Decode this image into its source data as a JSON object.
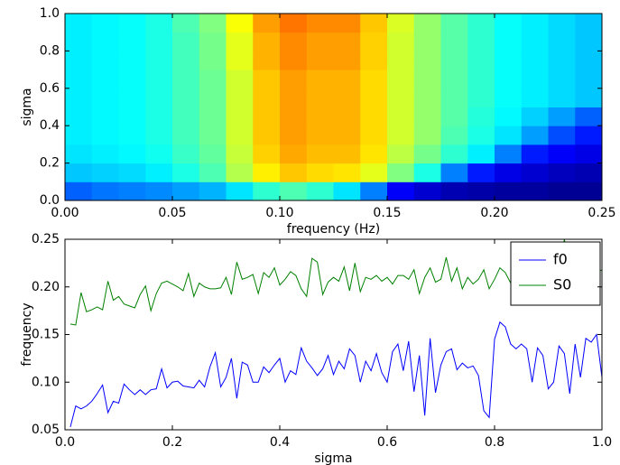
{
  "chart_data": [
    {
      "type": "heatmap",
      "xlabel": "frequency (Hz)",
      "ylabel": "sigma",
      "colormap": "jet",
      "xlim": [
        0,
        0.25
      ],
      "ylim": [
        0,
        1
      ],
      "xticks": [
        {
          "value": 0,
          "label": "0.00"
        },
        0.05,
        {
          "value": 0.1,
          "label": "0.10"
        },
        0.15,
        {
          "value": 0.2,
          "label": "0.20"
        },
        0.25
      ],
      "yticks": [
        {
          "value": 0,
          "label": "0.0"
        },
        0.2,
        0.4,
        0.6,
        0.8,
        {
          "value": 1,
          "label": "1.0"
        }
      ],
      "z": [
        [
          0.22,
          0.24,
          0.25,
          0.26,
          0.28,
          0.3,
          0.35,
          0.42,
          0.45,
          0.42,
          0.35,
          0.25,
          0.12,
          0.08,
          0.05,
          0.04,
          0.03,
          0.03,
          0.02,
          0.02
        ],
        [
          0.32,
          0.33,
          0.34,
          0.36,
          0.4,
          0.45,
          0.55,
          0.64,
          0.68,
          0.66,
          0.65,
          0.6,
          0.5,
          0.4,
          0.25,
          0.15,
          0.1,
          0.08,
          0.06,
          0.05
        ],
        [
          0.35,
          0.36,
          0.37,
          0.39,
          0.43,
          0.47,
          0.57,
          0.67,
          0.71,
          0.69,
          0.69,
          0.65,
          0.56,
          0.49,
          0.42,
          0.36,
          0.25,
          0.15,
          0.12,
          0.1
        ],
        [
          0.36,
          0.37,
          0.38,
          0.4,
          0.44,
          0.48,
          0.58,
          0.68,
          0.72,
          0.7,
          0.7,
          0.66,
          0.58,
          0.52,
          0.45,
          0.4,
          0.35,
          0.28,
          0.2,
          0.15
        ],
        [
          0.36,
          0.37,
          0.38,
          0.4,
          0.44,
          0.48,
          0.58,
          0.68,
          0.72,
          0.7,
          0.7,
          0.66,
          0.58,
          0.52,
          0.46,
          0.41,
          0.37,
          0.33,
          0.28,
          0.22
        ],
        [
          0.36,
          0.37,
          0.38,
          0.4,
          0.44,
          0.48,
          0.58,
          0.68,
          0.72,
          0.7,
          0.7,
          0.66,
          0.58,
          0.52,
          0.46,
          0.42,
          0.38,
          0.36,
          0.34,
          0.32
        ],
        [
          0.36,
          0.37,
          0.38,
          0.4,
          0.44,
          0.48,
          0.58,
          0.68,
          0.72,
          0.7,
          0.7,
          0.66,
          0.58,
          0.52,
          0.46,
          0.42,
          0.38,
          0.36,
          0.34,
          0.32
        ],
        [
          0.36,
          0.37,
          0.38,
          0.4,
          0.44,
          0.49,
          0.6,
          0.7,
          0.74,
          0.72,
          0.72,
          0.67,
          0.58,
          0.52,
          0.46,
          0.42,
          0.38,
          0.36,
          0.34,
          0.32
        ],
        [
          0.36,
          0.37,
          0.38,
          0.4,
          0.44,
          0.49,
          0.6,
          0.7,
          0.74,
          0.72,
          0.72,
          0.67,
          0.58,
          0.52,
          0.46,
          0.42,
          0.38,
          0.36,
          0.34,
          0.32
        ],
        [
          0.36,
          0.37,
          0.38,
          0.4,
          0.45,
          0.5,
          0.62,
          0.72,
          0.76,
          0.74,
          0.74,
          0.68,
          0.59,
          0.52,
          0.46,
          0.42,
          0.38,
          0.36,
          0.34,
          0.32
        ]
      ]
    },
    {
      "type": "line",
      "xlabel": "sigma",
      "ylabel": "frequency",
      "legend": "upper right",
      "xlim": [
        0,
        1
      ],
      "ylim": [
        0.05,
        0.25
      ],
      "xticks": [
        {
          "value": 0,
          "label": "0.0"
        },
        0.2,
        0.4,
        0.6,
        0.8,
        {
          "value": 1,
          "label": "1.0"
        }
      ],
      "yticks": [
        0.05,
        {
          "value": 0.1,
          "label": "0.10"
        },
        0.15,
        {
          "value": 0.2,
          "label": "0.20"
        },
        0.25
      ],
      "x": [
        0.01,
        0.02,
        0.03,
        0.04,
        0.05,
        0.06,
        0.07,
        0.08,
        0.09,
        0.1,
        0.11,
        0.12,
        0.13,
        0.14,
        0.15,
        0.16,
        0.17,
        0.18,
        0.19,
        0.2,
        0.21,
        0.22,
        0.23,
        0.24,
        0.25,
        0.26,
        0.27,
        0.28,
        0.29,
        0.3,
        0.31,
        0.32,
        0.33,
        0.34,
        0.35,
        0.36,
        0.37,
        0.38,
        0.39,
        0.4,
        0.41,
        0.42,
        0.43,
        0.44,
        0.45,
        0.46,
        0.47,
        0.48,
        0.49,
        0.5,
        0.51,
        0.52,
        0.53,
        0.54,
        0.55,
        0.56,
        0.57,
        0.58,
        0.59,
        0.6,
        0.61,
        0.62,
        0.63,
        0.64,
        0.65,
        0.66,
        0.67,
        0.68,
        0.69,
        0.7,
        0.71,
        0.72,
        0.73,
        0.74,
        0.75,
        0.76,
        0.77,
        0.78,
        0.79,
        0.8,
        0.81,
        0.82,
        0.83,
        0.84,
        0.85,
        0.86,
        0.87,
        0.88,
        0.89,
        0.9,
        0.91,
        0.92,
        0.93,
        0.94,
        0.95,
        0.96,
        0.97,
        0.98,
        0.99,
        1.0
      ],
      "series": [
        {
          "name": "f0",
          "color": "#0000ff",
          "values": [
            0.053,
            0.075,
            0.072,
            0.075,
            0.08,
            0.088,
            0.097,
            0.068,
            0.08,
            0.078,
            0.098,
            0.092,
            0.087,
            0.092,
            0.087,
            0.092,
            0.093,
            0.114,
            0.094,
            0.1,
            0.101,
            0.096,
            0.095,
            0.094,
            0.102,
            0.095,
            0.116,
            0.131,
            0.095,
            0.105,
            0.125,
            0.083,
            0.121,
            0.118,
            0.1,
            0.1,
            0.116,
            0.11,
            0.118,
            0.125,
            0.1,
            0.112,
            0.108,
            0.136,
            0.122,
            0.115,
            0.107,
            0.114,
            0.128,
            0.108,
            0.122,
            0.114,
            0.135,
            0.128,
            0.1,
            0.122,
            0.112,
            0.13,
            0.11,
            0.1,
            0.132,
            0.14,
            0.112,
            0.143,
            0.09,
            0.128,
            0.065,
            0.146,
            0.089,
            0.118,
            0.132,
            0.135,
            0.113,
            0.12,
            0.115,
            0.117,
            0.107,
            0.07,
            0.063,
            0.145,
            0.163,
            0.158,
            0.14,
            0.135,
            0.14,
            0.135,
            0.1,
            0.136,
            0.128,
            0.093,
            0.1,
            0.138,
            0.13,
            0.088,
            0.14,
            0.105,
            0.146,
            0.142,
            0.15,
            0.105
          ]
        },
        {
          "name": "S0",
          "color": "#008000",
          "values": [
            0.161,
            0.16,
            0.194,
            0.174,
            0.176,
            0.179,
            0.176,
            0.206,
            0.186,
            0.19,
            0.182,
            0.18,
            0.178,
            0.192,
            0.201,
            0.175,
            0.193,
            0.204,
            0.206,
            0.203,
            0.2,
            0.196,
            0.214,
            0.19,
            0.204,
            0.2,
            0.198,
            0.198,
            0.199,
            0.21,
            0.192,
            0.226,
            0.208,
            0.21,
            0.213,
            0.193,
            0.215,
            0.21,
            0.22,
            0.202,
            0.208,
            0.216,
            0.212,
            0.198,
            0.19,
            0.23,
            0.226,
            0.192,
            0.205,
            0.21,
            0.206,
            0.221,
            0.196,
            0.225,
            0.195,
            0.21,
            0.208,
            0.212,
            0.206,
            0.21,
            0.203,
            0.212,
            0.212,
            0.208,
            0.218,
            0.193,
            0.21,
            0.22,
            0.205,
            0.208,
            0.231,
            0.206,
            0.22,
            0.198,
            0.21,
            0.203,
            0.208,
            0.218,
            0.198,
            0.208,
            0.22,
            0.215,
            0.204,
            0.213,
            0.218,
            0.2,
            0.223,
            0.205,
            0.21,
            0.221,
            0.214,
            0.211,
            0.25,
            0.218,
            0.222,
            0.213,
            0.216,
            0.22,
            0.215,
            0.218
          ]
        }
      ]
    }
  ]
}
